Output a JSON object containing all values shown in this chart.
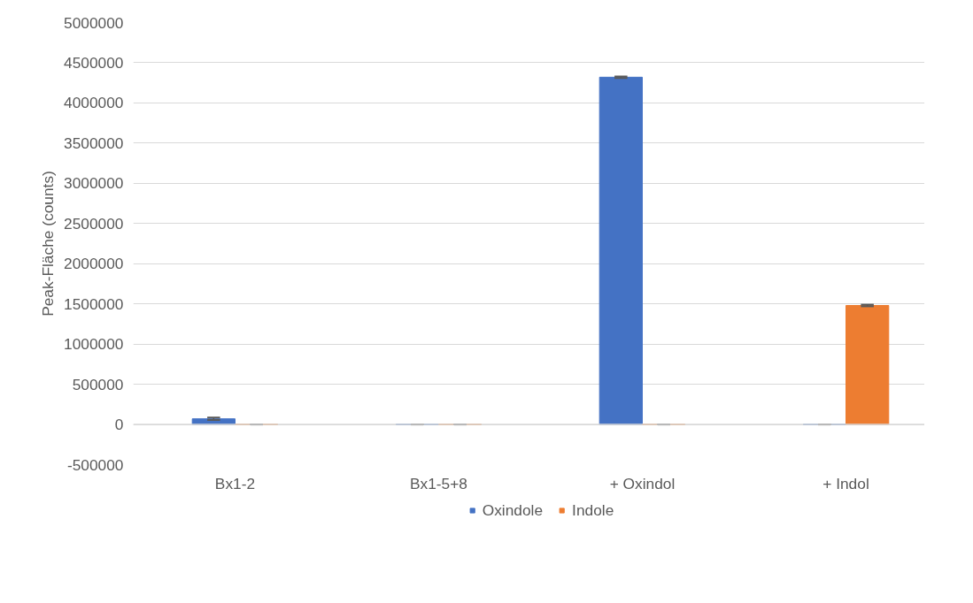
{
  "chart_data": {
    "type": "bar",
    "ylabel": "Peak-Fläche (counts)",
    "categories": [
      "Bx1-2",
      "Bx1-5+8",
      "+ Oxindol",
      "+ Indol"
    ],
    "series": [
      {
        "name": "Oxindole",
        "color": "#4472c4",
        "values": [
          70000,
          0,
          4320000,
          0
        ],
        "errors": [
          15000,
          0,
          10000,
          0
        ]
      },
      {
        "name": "Indole",
        "color": "#ed7d31",
        "values": [
          0,
          0,
          0,
          1480000
        ],
        "errors": [
          0,
          0,
          0,
          10000
        ]
      }
    ],
    "ylim": [
      -500000,
      5000000
    ],
    "yticks": [
      -500000,
      0,
      500000,
      1000000,
      1500000,
      2000000,
      2500000,
      3000000,
      3500000,
      4000000,
      4500000,
      5000000
    ],
    "grid": "y",
    "legend": "bottom"
  }
}
